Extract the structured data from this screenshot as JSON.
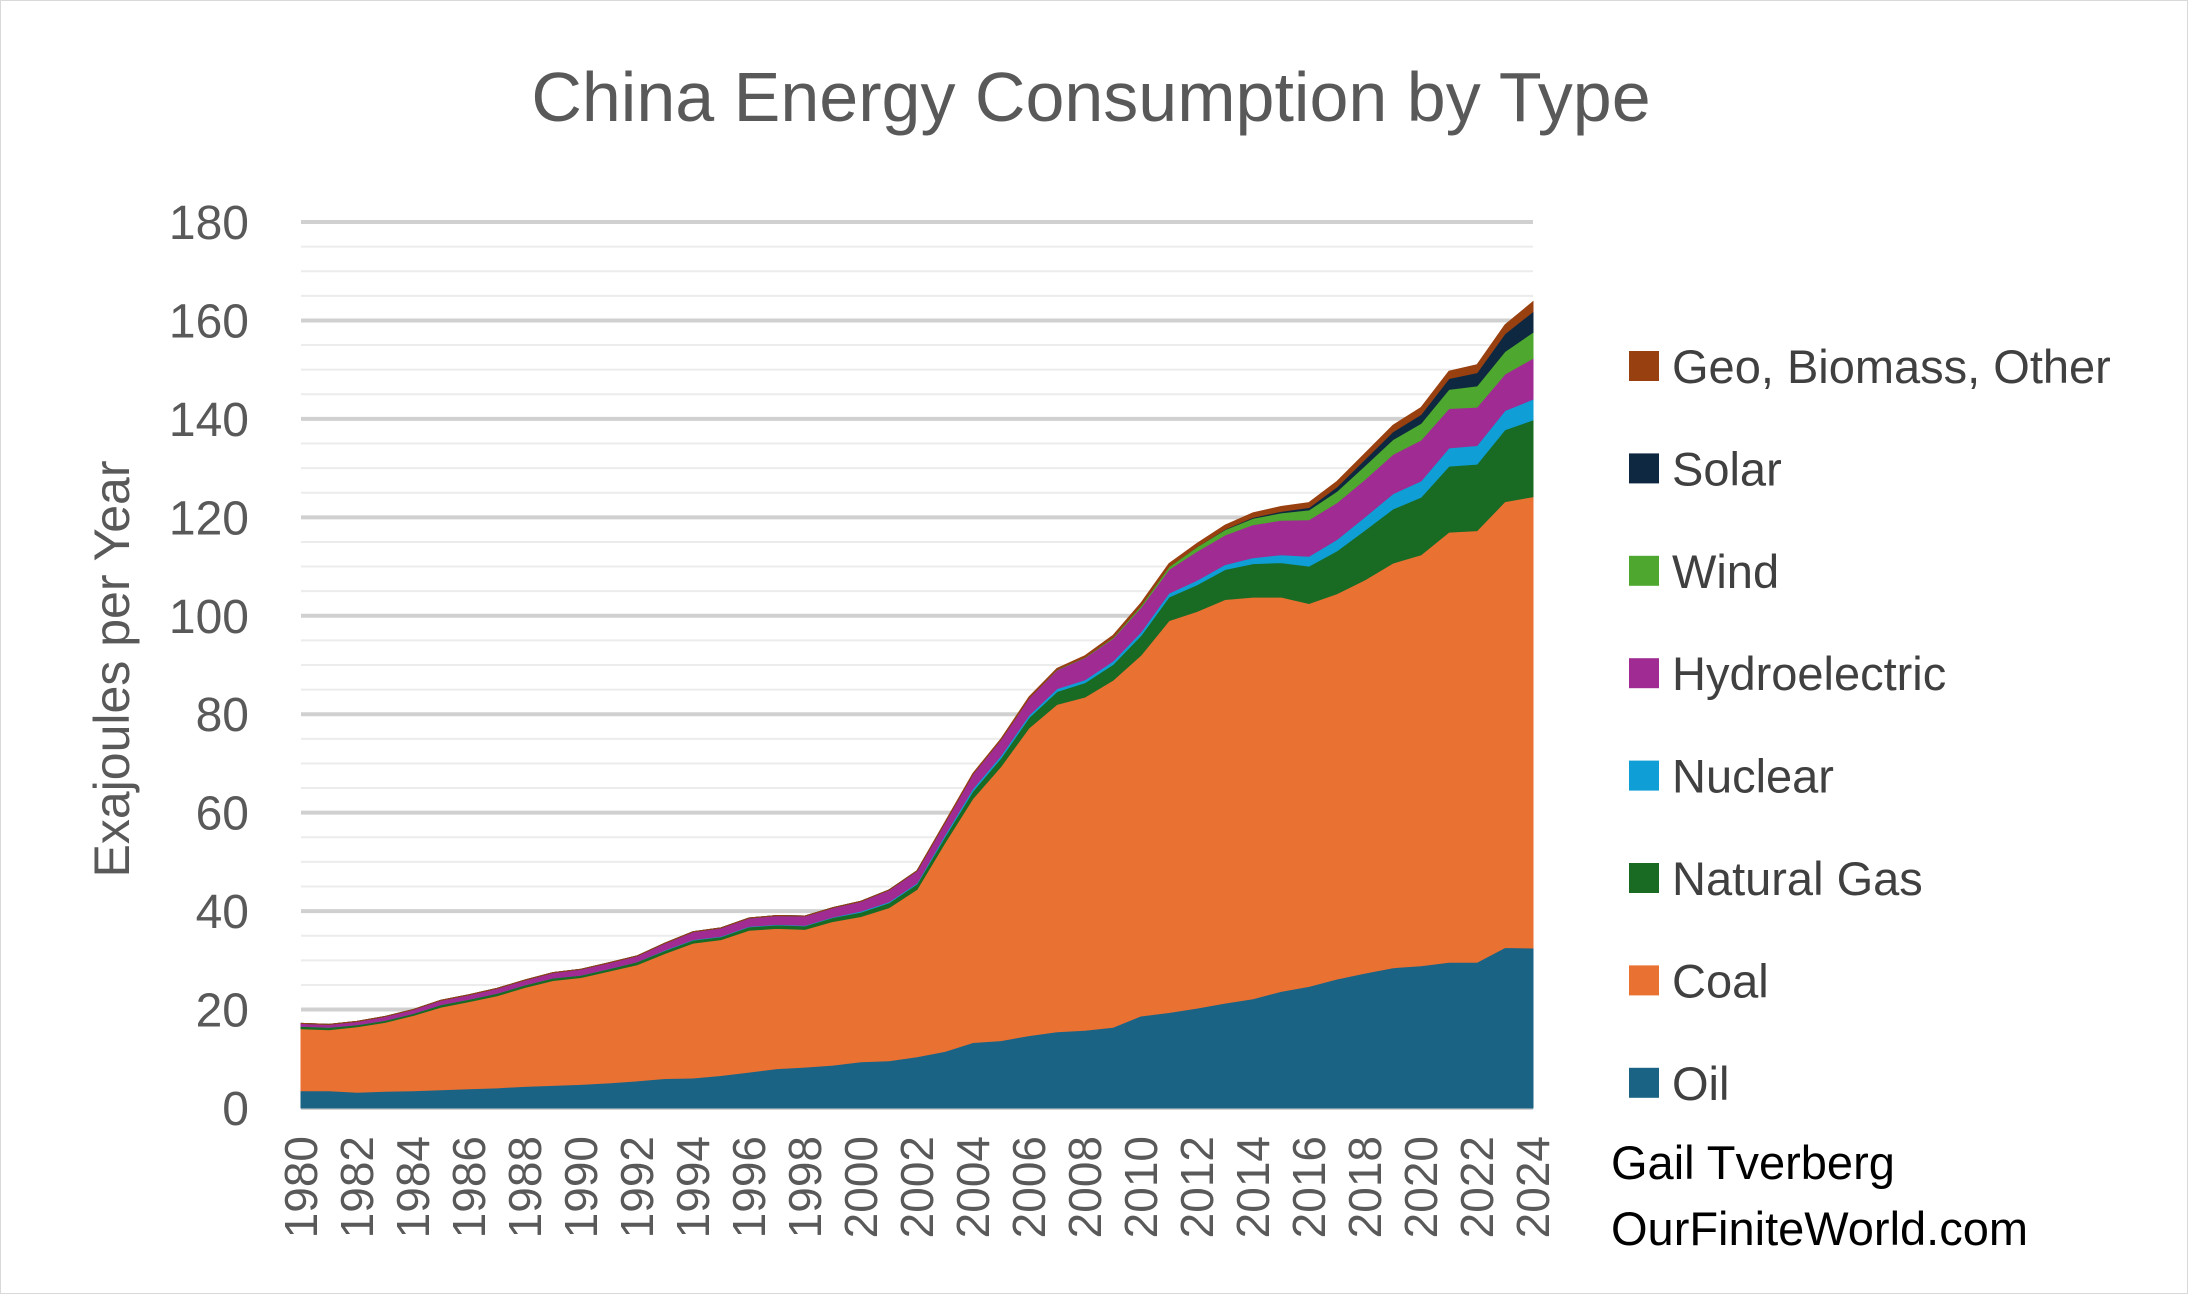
{
  "chart_data": {
    "type": "area",
    "stacked": true,
    "title": "China Energy Consumption by Type",
    "xlabel": "",
    "ylabel": "Exajoules per Year",
    "ylim": [
      0,
      180
    ],
    "y_ticks": [
      0,
      20,
      40,
      60,
      80,
      100,
      120,
      140,
      160,
      180
    ],
    "x_tick_labels": [
      "1980",
      "1982",
      "1984",
      "1986",
      "1988",
      "1990",
      "1992",
      "1994",
      "1996",
      "1998",
      "2000",
      "2002",
      "2004",
      "2006",
      "2008",
      "2010",
      "2012",
      "2014",
      "2016",
      "2018",
      "2020",
      "2022",
      "2024"
    ],
    "grid": true,
    "legend_position": "right",
    "x": [
      1980,
      1981,
      1982,
      1983,
      1984,
      1985,
      1986,
      1987,
      1988,
      1989,
      1990,
      1991,
      1992,
      1993,
      1994,
      1995,
      1996,
      1997,
      1998,
      1999,
      2000,
      2001,
      2002,
      2003,
      2004,
      2005,
      2006,
      2007,
      2008,
      2009,
      2010,
      2011,
      2012,
      2013,
      2014,
      2015,
      2016,
      2017,
      2018,
      2019,
      2020,
      2021,
      2022,
      2023,
      2024
    ],
    "series": [
      {
        "name": "Oil",
        "color": "#1a6385",
        "values": [
          3.5,
          3.5,
          3.2,
          3.4,
          3.5,
          3.7,
          3.9,
          4.1,
          4.4,
          4.6,
          4.8,
          5.1,
          5.5,
          6.0,
          6.1,
          6.6,
          7.3,
          8.0,
          8.3,
          8.7,
          9.4,
          9.6,
          10.4,
          11.5,
          13.3,
          13.7,
          14.7,
          15.5,
          15.8,
          16.4,
          18.7,
          19.4,
          20.3,
          21.3,
          22.2,
          23.7,
          24.7,
          26.2,
          27.4,
          28.5,
          28.9,
          29.6,
          29.6,
          32.6,
          32.5
        ]
      },
      {
        "name": "Coal",
        "color": "#e97132",
        "values": [
          12.6,
          12.4,
          13.3,
          14.0,
          15.3,
          16.8,
          17.7,
          18.7,
          20.1,
          21.3,
          21.7,
          22.7,
          23.6,
          25.4,
          27.4,
          27.6,
          28.8,
          28.5,
          28.0,
          29.2,
          29.5,
          31.1,
          34.0,
          42.4,
          49.6,
          55.7,
          62.5,
          66.5,
          67.7,
          70.5,
          73.3,
          79.6,
          80.6,
          82.0,
          81.6,
          80.1,
          77.8,
          78.3,
          79.9,
          82.2,
          83.5,
          87.4,
          87.7,
          90.6,
          91.7
        ]
      },
      {
        "name": "Natural Gas",
        "color": "#196b24",
        "values": [
          0.5,
          0.5,
          0.4,
          0.4,
          0.4,
          0.5,
          0.5,
          0.5,
          0.5,
          0.5,
          0.5,
          0.5,
          0.6,
          0.6,
          0.6,
          0.6,
          0.7,
          0.7,
          0.7,
          0.8,
          0.9,
          1.0,
          1.1,
          1.2,
          1.5,
          1.7,
          2.1,
          2.6,
          2.9,
          3.2,
          4.0,
          4.8,
          5.4,
          6.1,
          6.8,
          7.0,
          7.6,
          8.7,
          10.1,
          11.0,
          11.7,
          13.4,
          13.5,
          14.6,
          15.6
        ]
      },
      {
        "name": "Nuclear",
        "color": "#0f9ed5",
        "values": [
          0,
          0,
          0,
          0,
          0,
          0,
          0,
          0,
          0,
          0,
          0,
          0,
          0,
          0.1,
          0.1,
          0.1,
          0.1,
          0.1,
          0.1,
          0.1,
          0.2,
          0.2,
          0.2,
          0.4,
          0.5,
          0.5,
          0.5,
          0.6,
          0.6,
          0.7,
          0.7,
          0.8,
          0.9,
          1.0,
          1.2,
          1.6,
          2.0,
          2.3,
          2.7,
          3.1,
          3.3,
          3.7,
          3.8,
          3.9,
          4.2
        ]
      },
      {
        "name": "Hydroelectric",
        "color": "#a02b93",
        "values": [
          0.6,
          0.6,
          0.7,
          0.8,
          0.8,
          0.9,
          0.9,
          1.0,
          1.0,
          1.1,
          1.2,
          1.2,
          1.2,
          1.4,
          1.6,
          1.7,
          1.7,
          1.8,
          1.9,
          1.9,
          2.0,
          2.4,
          2.5,
          2.5,
          3.0,
          3.3,
          3.5,
          3.8,
          4.5,
          4.6,
          5.0,
          4.8,
          5.9,
          6.0,
          6.7,
          7.0,
          7.4,
          7.5,
          7.6,
          8.0,
          8.3,
          8.0,
          7.8,
          7.4,
          8.3
        ]
      },
      {
        "name": "Wind",
        "color": "#4ea72e",
        "values": [
          0,
          0,
          0,
          0,
          0,
          0,
          0,
          0,
          0,
          0,
          0,
          0,
          0,
          0,
          0,
          0,
          0,
          0,
          0,
          0,
          0,
          0,
          0,
          0,
          0,
          0,
          0,
          0.1,
          0.1,
          0.2,
          0.4,
          0.6,
          0.9,
          1.1,
          1.3,
          1.5,
          2.0,
          2.3,
          2.8,
          3.0,
          3.4,
          3.9,
          4.3,
          4.6,
          5.3
        ]
      },
      {
        "name": "Solar",
        "color": "#0e2841",
        "values": [
          0,
          0,
          0,
          0,
          0,
          0,
          0,
          0,
          0,
          0,
          0,
          0,
          0,
          0,
          0,
          0,
          0,
          0,
          0,
          0,
          0,
          0,
          0,
          0,
          0,
          0,
          0,
          0,
          0,
          0,
          0,
          0,
          0,
          0.1,
          0.2,
          0.3,
          0.5,
          0.9,
          1.3,
          1.6,
          1.8,
          2.2,
          2.7,
          3.6,
          4.2
        ]
      },
      {
        "name": "Geo, Biomass, Other",
        "color": "#994010",
        "values": [
          0,
          0,
          0,
          0,
          0,
          0,
          0,
          0,
          0,
          0,
          0,
          0,
          0,
          0,
          0,
          0,
          0,
          0,
          0,
          0,
          0,
          0,
          0,
          0.1,
          0.1,
          0.1,
          0.2,
          0.2,
          0.3,
          0.4,
          0.5,
          0.6,
          0.7,
          0.8,
          0.9,
          1.0,
          1.0,
          1.1,
          1.2,
          1.3,
          1.4,
          1.5,
          1.6,
          1.8,
          2.0
        ]
      }
    ]
  },
  "credit": {
    "line1": "Gail Tverberg",
    "line2": "OurFiniteWorld.com"
  }
}
